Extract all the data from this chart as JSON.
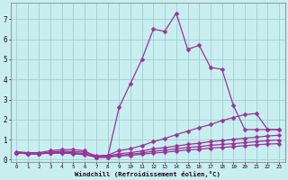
{
  "xlabel": "Windchill (Refroidissement éolien,°C)",
  "bg_color": "#c8eef0",
  "grid_color": "#9ecece",
  "line_color": "#993399",
  "markersize": 2.5,
  "linewidth": 0.9,
  "xlim": [
    -0.5,
    23.5
  ],
  "ylim": [
    -0.1,
    7.8
  ],
  "xticks": [
    0,
    1,
    2,
    3,
    4,
    5,
    6,
    7,
    8,
    9,
    10,
    11,
    12,
    13,
    14,
    15,
    16,
    17,
    18,
    19,
    20,
    21,
    22,
    23
  ],
  "yticks": [
    0,
    1,
    2,
    3,
    4,
    5,
    6,
    7
  ],
  "lines": [
    [
      0.4,
      0.35,
      0.35,
      0.45,
      0.5,
      0.5,
      0.45,
      0.12,
      0.12,
      2.6,
      3.8,
      5.0,
      6.5,
      6.4,
      7.3,
      5.5,
      5.7,
      4.6,
      4.5,
      2.7,
      1.5,
      1.5,
      1.5,
      1.5
    ],
    [
      0.35,
      0.3,
      0.3,
      0.38,
      0.42,
      0.4,
      0.38,
      0.2,
      0.22,
      0.45,
      0.55,
      0.7,
      0.9,
      1.05,
      1.25,
      1.42,
      1.6,
      1.75,
      1.95,
      2.1,
      2.25,
      2.3,
      1.5,
      1.5
    ],
    [
      0.35,
      0.3,
      0.3,
      0.35,
      0.38,
      0.35,
      0.3,
      0.15,
      0.18,
      0.3,
      0.35,
      0.44,
      0.54,
      0.6,
      0.68,
      0.76,
      0.82,
      0.9,
      0.95,
      1.02,
      1.07,
      1.12,
      1.18,
      1.22
    ],
    [
      0.35,
      0.3,
      0.3,
      0.33,
      0.35,
      0.32,
      0.27,
      0.13,
      0.15,
      0.22,
      0.27,
      0.34,
      0.42,
      0.47,
      0.54,
      0.61,
      0.65,
      0.72,
      0.76,
      0.8,
      0.85,
      0.9,
      0.95,
      0.98
    ],
    [
      0.35,
      0.3,
      0.3,
      0.32,
      0.33,
      0.3,
      0.25,
      0.12,
      0.13,
      0.18,
      0.22,
      0.27,
      0.33,
      0.37,
      0.43,
      0.49,
      0.52,
      0.58,
      0.61,
      0.65,
      0.7,
      0.74,
      0.78,
      0.8
    ]
  ]
}
